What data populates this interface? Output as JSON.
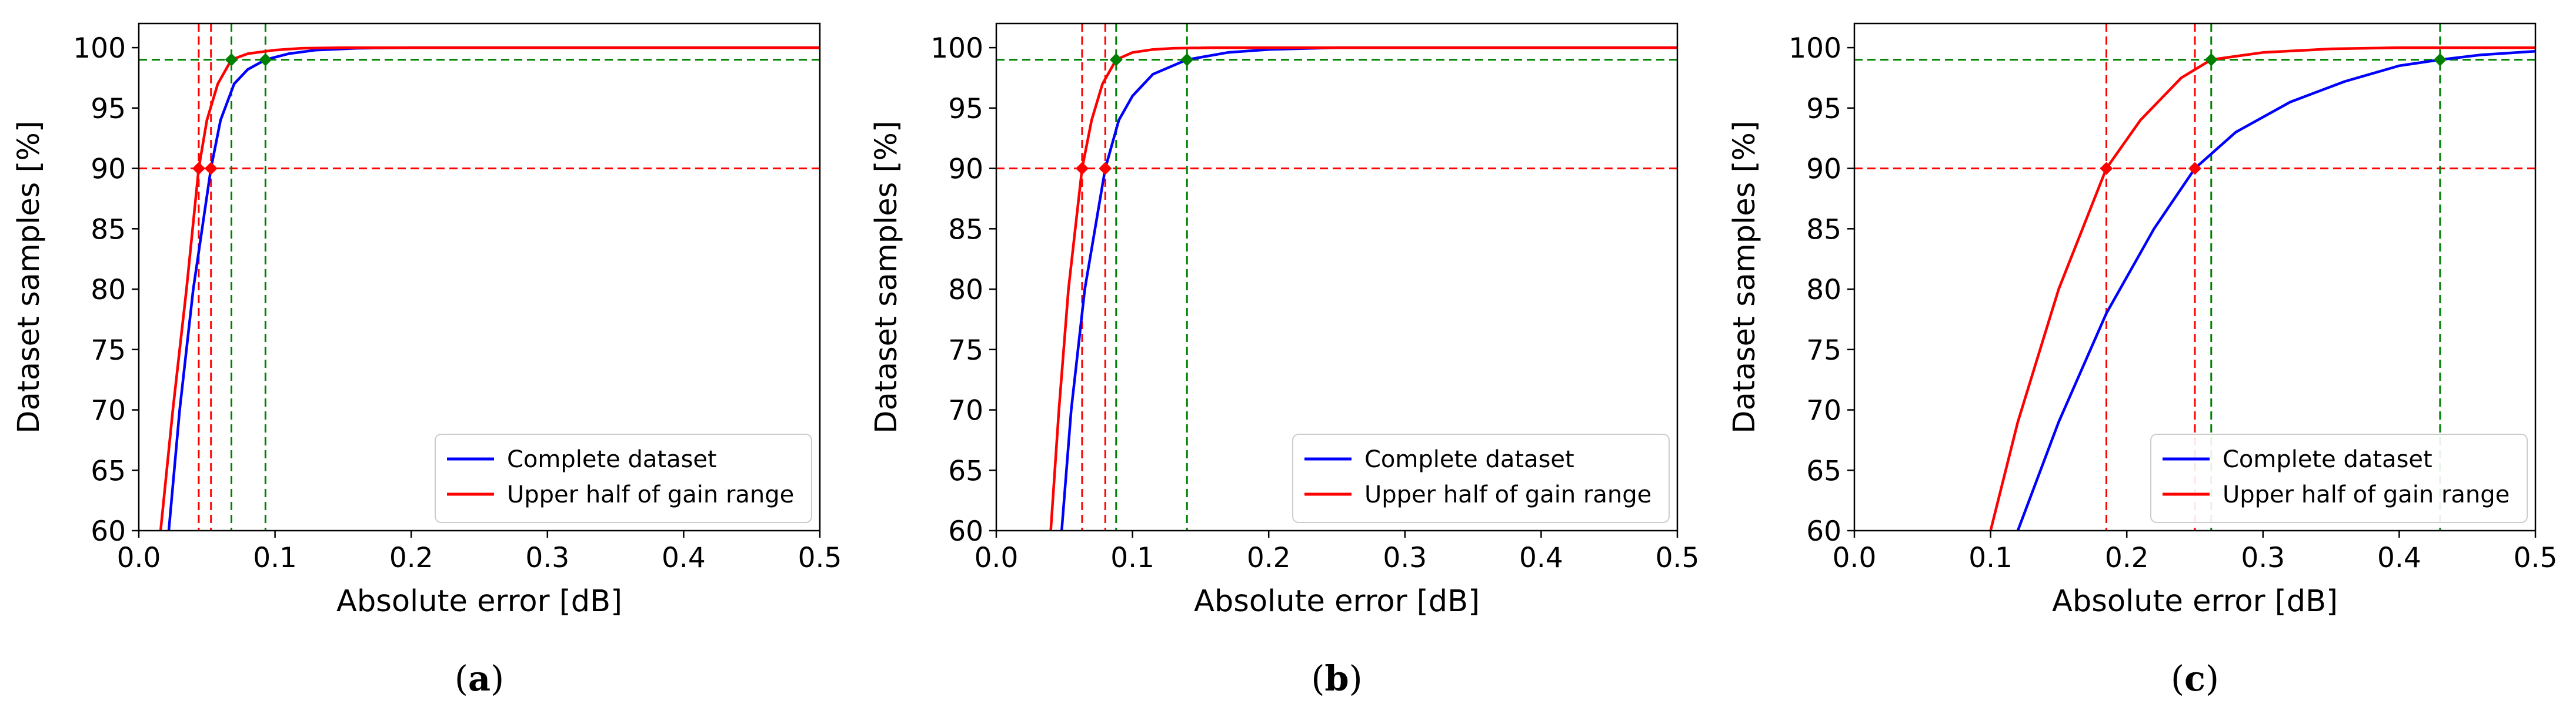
{
  "colors": {
    "complete": "#0000ff",
    "upper": "#ff0000",
    "guide90": "#ff0000",
    "guide99": "#008000",
    "marker99": "#008000",
    "frame": "#000000"
  },
  "chart_data": [
    {
      "type": "line",
      "panel": "(a)",
      "panel_letter": "a",
      "xlabel": "Absolute error [dB]",
      "ylabel": "Dataset samples [%]",
      "xlim": [
        0.0,
        0.5
      ],
      "ylim": [
        60,
        102
      ],
      "xticks": [
        "0.0",
        "0.1",
        "0.2",
        "0.3",
        "0.4",
        "0.5"
      ],
      "yticks": [
        "60",
        "65",
        "70",
        "75",
        "80",
        "85",
        "90",
        "95",
        "100"
      ],
      "legend": {
        "position": "lower-right",
        "entries": [
          "Complete dataset",
          "Upper half of gain range"
        ]
      },
      "series": [
        {
          "name": "Complete dataset",
          "color": "#0000ff",
          "x": [
            0.022,
            0.03,
            0.04,
            0.053,
            0.06,
            0.07,
            0.08,
            0.093,
            0.11,
            0.13,
            0.16,
            0.2,
            0.3,
            0.5
          ],
          "y": [
            60,
            70,
            80,
            90,
            94,
            97,
            98.2,
            99,
            99.5,
            99.8,
            99.95,
            100,
            100,
            100
          ]
        },
        {
          "name": "Upper half of gain range",
          "color": "#ff0000",
          "x": [
            0.016,
            0.025,
            0.035,
            0.044,
            0.05,
            0.058,
            0.068,
            0.08,
            0.1,
            0.12,
            0.15,
            0.3,
            0.5
          ],
          "y": [
            60,
            70,
            80,
            90,
            94,
            97,
            99,
            99.5,
            99.8,
            99.95,
            100,
            100,
            100
          ]
        }
      ],
      "guides": {
        "y90": 90,
        "y99": 99,
        "x90": [
          0.044,
          0.053
        ],
        "x99": [
          0.068,
          0.093
        ]
      }
    },
    {
      "type": "line",
      "panel": "(b)",
      "panel_letter": "b",
      "xlabel": "Absolute error [dB]",
      "ylabel": "Dataset samples [%]",
      "xlim": [
        0.0,
        0.5
      ],
      "ylim": [
        60,
        102
      ],
      "xticks": [
        "0.0",
        "0.1",
        "0.2",
        "0.3",
        "0.4",
        "0.5"
      ],
      "yticks": [
        "60",
        "65",
        "70",
        "75",
        "80",
        "85",
        "90",
        "95",
        "100"
      ],
      "legend": {
        "position": "lower-right",
        "entries": [
          "Complete dataset",
          "Upper half of gain range"
        ]
      },
      "series": [
        {
          "name": "Complete dataset",
          "color": "#0000ff",
          "x": [
            0.048,
            0.055,
            0.065,
            0.08,
            0.09,
            0.1,
            0.115,
            0.14,
            0.17,
            0.2,
            0.25,
            0.3,
            0.5
          ],
          "y": [
            60,
            70,
            80,
            90,
            94,
            96,
            97.8,
            99,
            99.6,
            99.85,
            100,
            100,
            100
          ]
        },
        {
          "name": "Upper half of gain range",
          "color": "#ff0000",
          "x": [
            0.04,
            0.046,
            0.053,
            0.063,
            0.07,
            0.078,
            0.088,
            0.1,
            0.115,
            0.13,
            0.16,
            0.3,
            0.5
          ],
          "y": [
            60,
            70,
            80,
            90,
            94,
            97,
            99,
            99.6,
            99.85,
            99.95,
            100,
            100,
            100
          ]
        }
      ],
      "guides": {
        "y90": 90,
        "y99": 99,
        "x90": [
          0.063,
          0.08
        ],
        "x99": [
          0.088,
          0.14
        ]
      }
    },
    {
      "type": "line",
      "panel": "(c)",
      "panel_letter": "c",
      "xlabel": "Absolute error [dB]",
      "ylabel": "Dataset samples [%]",
      "xlim": [
        0.0,
        0.5
      ],
      "ylim": [
        60,
        102
      ],
      "xticks": [
        "0.0",
        "0.1",
        "0.2",
        "0.3",
        "0.4",
        "0.5"
      ],
      "yticks": [
        "60",
        "65",
        "70",
        "75",
        "80",
        "85",
        "90",
        "95",
        "100"
      ],
      "legend": {
        "position": "lower-right",
        "entries": [
          "Complete dataset",
          "Upper half of gain range"
        ]
      },
      "series": [
        {
          "name": "Complete dataset",
          "color": "#0000ff",
          "x": [
            0.12,
            0.15,
            0.185,
            0.22,
            0.25,
            0.28,
            0.32,
            0.36,
            0.4,
            0.43,
            0.46,
            0.5
          ],
          "y": [
            60,
            69,
            78,
            85,
            90,
            93,
            95.5,
            97.2,
            98.5,
            99,
            99.4,
            99.7
          ]
        },
        {
          "name": "Upper half of gain range",
          "color": "#ff0000",
          "x": [
            0.1,
            0.12,
            0.15,
            0.185,
            0.21,
            0.24,
            0.262,
            0.3,
            0.35,
            0.4,
            0.5
          ],
          "y": [
            60,
            69,
            80,
            90,
            94,
            97.5,
            99,
            99.6,
            99.9,
            100,
            100
          ]
        }
      ],
      "guides": {
        "y90": 90,
        "y99": 99,
        "x90": [
          0.185,
          0.25
        ],
        "x99": [
          0.262,
          0.43
        ]
      }
    }
  ]
}
